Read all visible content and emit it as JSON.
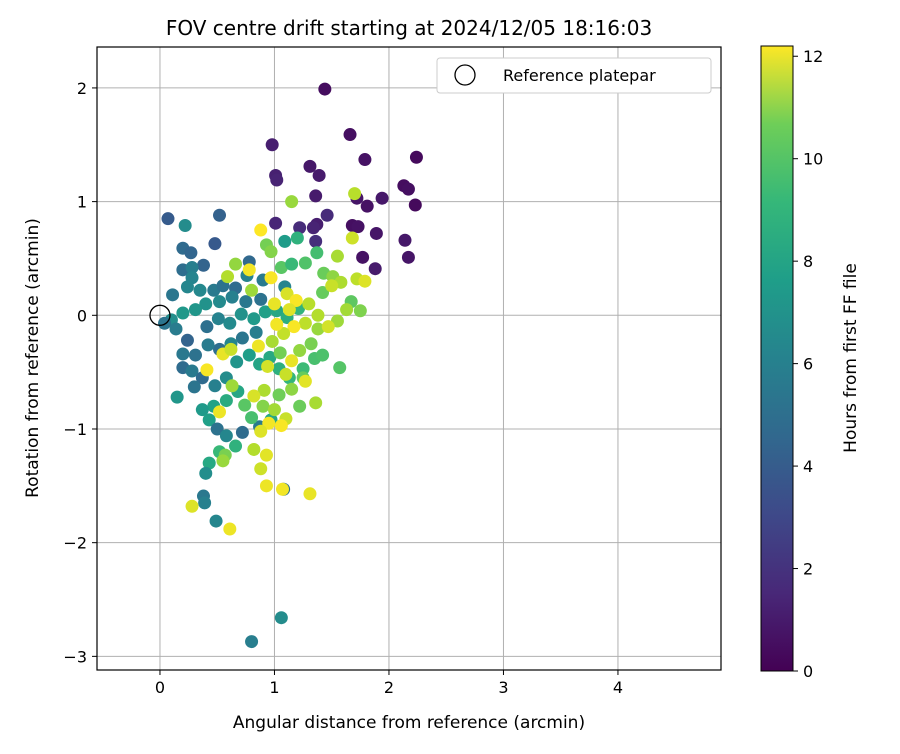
{
  "chart_data": {
    "type": "scatter",
    "title": "FOV centre drift starting at 2024/12/05 18:16:03",
    "xlabel": "Angular distance from reference (arcmin)",
    "ylabel": "Rotation from reference (arcmin)",
    "xlim": [
      -0.55,
      4.9
    ],
    "ylim": [
      -3.12,
      2.36
    ],
    "x_ticks": [
      0,
      1,
      2,
      3,
      4
    ],
    "y_ticks": [
      -3,
      -2,
      -1,
      0,
      1,
      2
    ],
    "grid": true,
    "legend": {
      "placement": "top-right",
      "entries": [
        {
          "label": "Reference platepar",
          "marker": "open-circle",
          "x": 0,
          "y": 0
        }
      ]
    },
    "colorbar": {
      "label": "Hours from first FF file",
      "range": [
        0,
        12.2
      ],
      "ticks": [
        0,
        2,
        4,
        6,
        8,
        10,
        12
      ],
      "colormap": "viridis"
    },
    "reference_point": {
      "x": 0,
      "y": 0
    },
    "points": [
      [
        1.44,
        1.99,
        0.4
      ],
      [
        1.66,
        1.59,
        0.5
      ],
      [
        0.98,
        1.5,
        1.0
      ],
      [
        1.79,
        1.37,
        0.6
      ],
      [
        2.24,
        1.39,
        0.3
      ],
      [
        1.31,
        1.31,
        0.8
      ],
      [
        1.39,
        1.23,
        0.9
      ],
      [
        1.01,
        1.23,
        1.1
      ],
      [
        1.02,
        1.19,
        1.2
      ],
      [
        2.13,
        1.14,
        0.4
      ],
      [
        2.17,
        1.11,
        0.5
      ],
      [
        1.72,
        1.03,
        0.7
      ],
      [
        1.94,
        1.03,
        0.8
      ],
      [
        1.36,
        1.05,
        0.9
      ],
      [
        2.23,
        0.97,
        0.3
      ],
      [
        1.81,
        0.96,
        0.6
      ],
      [
        1.46,
        0.88,
        1.5
      ],
      [
        1.01,
        0.81,
        1.3
      ],
      [
        1.68,
        0.79,
        0.5
      ],
      [
        1.73,
        0.78,
        0.6
      ],
      [
        1.89,
        0.72,
        0.7
      ],
      [
        1.37,
        0.8,
        1.0
      ],
      [
        1.34,
        0.77,
        1.2
      ],
      [
        1.22,
        0.77,
        1.5
      ],
      [
        2.14,
        0.66,
        0.8
      ],
      [
        1.36,
        0.65,
        1.6
      ],
      [
        1.77,
        0.51,
        0.6
      ],
      [
        2.17,
        0.51,
        0.7
      ],
      [
        1.88,
        0.41,
        0.9
      ],
      [
        0.07,
        0.85,
        3.5
      ],
      [
        0.52,
        0.88,
        3.8
      ],
      [
        0.22,
        0.79,
        5.9
      ],
      [
        0.48,
        0.63,
        3.4
      ],
      [
        0.2,
        0.59,
        4.2
      ],
      [
        0.27,
        0.55,
        4.0
      ],
      [
        0.38,
        0.44,
        3.9
      ],
      [
        0.2,
        0.4,
        4.4
      ],
      [
        0.28,
        0.42,
        5.2
      ],
      [
        0.28,
        0.33,
        5.5
      ],
      [
        0.11,
        0.18,
        4.8
      ],
      [
        0.24,
        0.25,
        5.6
      ],
      [
        0.35,
        0.22,
        5.7
      ],
      [
        0.47,
        0.22,
        5.0
      ],
      [
        0.55,
        0.26,
        4.6
      ],
      [
        0.66,
        0.24,
        4.3
      ],
      [
        0.78,
        0.47,
        4.1
      ],
      [
        0.76,
        0.35,
        5.4
      ],
      [
        0.9,
        0.31,
        5.0
      ],
      [
        1.09,
        0.25,
        5.5
      ],
      [
        0.88,
        0.14,
        4.6
      ],
      [
        0.75,
        0.12,
        4.9
      ],
      [
        0.63,
        0.16,
        5.3
      ],
      [
        0.52,
        0.12,
        5.8
      ],
      [
        0.4,
        0.1,
        6.2
      ],
      [
        0.31,
        0.05,
        6.4
      ],
      [
        0.2,
        0.02,
        6.5
      ],
      [
        0.1,
        -0.04,
        6.0
      ],
      [
        0.04,
        -0.07,
        4.7
      ],
      [
        0.14,
        -0.12,
        5.1
      ],
      [
        0.24,
        -0.22,
        3.9
      ],
      [
        0.41,
        -0.1,
        4.5
      ],
      [
        0.51,
        -0.03,
        5.4
      ],
      [
        0.61,
        -0.07,
        5.8
      ],
      [
        0.71,
        0.01,
        6.2
      ],
      [
        0.82,
        -0.03,
        6.6
      ],
      [
        0.92,
        0.03,
        6.9
      ],
      [
        1.02,
        0.04,
        7.2
      ],
      [
        1.11,
        -0.02,
        7.6
      ],
      [
        1.21,
        0.06,
        7.9
      ],
      [
        0.84,
        -0.15,
        5.2
      ],
      [
        0.72,
        -0.2,
        4.8
      ],
      [
        0.62,
        -0.25,
        5.6
      ],
      [
        0.52,
        -0.3,
        4.4
      ],
      [
        0.42,
        -0.26,
        5.1
      ],
      [
        0.31,
        -0.35,
        4.6
      ],
      [
        0.2,
        -0.34,
        4.9
      ],
      [
        0.2,
        -0.46,
        4.3
      ],
      [
        0.28,
        -0.49,
        5.0
      ],
      [
        0.37,
        -0.55,
        4.2
      ],
      [
        0.3,
        -0.63,
        4.7
      ],
      [
        0.48,
        -0.62,
        5.3
      ],
      [
        0.58,
        -0.55,
        5.9
      ],
      [
        0.67,
        -0.41,
        6.3
      ],
      [
        0.78,
        -0.35,
        6.8
      ],
      [
        0.87,
        -0.43,
        7.1
      ],
      [
        0.96,
        -0.37,
        7.4
      ],
      [
        1.04,
        -0.47,
        7.7
      ],
      [
        1.13,
        -0.55,
        8.0
      ],
      [
        1.25,
        -0.47,
        8.3
      ],
      [
        1.35,
        -0.38,
        8.6
      ],
      [
        1.57,
        -0.46,
        8.9
      ],
      [
        0.68,
        -0.67,
        7.2
      ],
      [
        0.58,
        -0.75,
        7.5
      ],
      [
        0.47,
        -0.8,
        7.0
      ],
      [
        0.37,
        -0.83,
        6.6
      ],
      [
        0.43,
        -0.92,
        6.9
      ],
      [
        0.5,
        -1.0,
        4.6
      ],
      [
        0.58,
        -1.06,
        5.6
      ],
      [
        0.72,
        -1.03,
        4.3
      ],
      [
        0.87,
        -0.98,
        5.0
      ],
      [
        0.97,
        -0.92,
        7.3
      ],
      [
        0.8,
        -0.9,
        8.6
      ],
      [
        0.66,
        -1.15,
        7.8
      ],
      [
        0.52,
        -1.2,
        8.2
      ],
      [
        0.43,
        -1.3,
        7.3
      ],
      [
        0.4,
        -1.39,
        6.0
      ],
      [
        0.38,
        -1.59,
        4.9
      ],
      [
        0.39,
        -1.65,
        5.3
      ],
      [
        0.49,
        -1.81,
        5.6
      ],
      [
        0.15,
        -0.72,
        6.4
      ],
      [
        1.08,
        -1.53,
        4.5
      ],
      [
        1.06,
        -2.66,
        5.9
      ],
      [
        0.8,
        -2.87,
        5.2
      ],
      [
        1.09,
        0.65,
        6.7
      ],
      [
        1.2,
        0.68,
        7.8
      ],
      [
        1.37,
        0.55,
        8.5
      ],
      [
        1.06,
        0.42,
        9.0
      ],
      [
        1.15,
        0.45,
        8.2
      ],
      [
        0.93,
        0.62,
        9.6
      ],
      [
        0.97,
        0.56,
        9.9
      ],
      [
        0.66,
        0.45,
        10.2
      ],
      [
        0.59,
        0.34,
        10.8
      ],
      [
        0.8,
        0.22,
        10.4
      ],
      [
        1.15,
        1.0,
        10.3
      ],
      [
        1.55,
        0.52,
        10.6
      ],
      [
        1.7,
        1.07,
        10.9
      ],
      [
        1.68,
        0.68,
        11.3
      ],
      [
        1.27,
        0.46,
        8.8
      ],
      [
        1.43,
        0.37,
        9.4
      ],
      [
        1.51,
        0.34,
        10.1
      ],
      [
        1.58,
        0.29,
        10.7
      ],
      [
        1.42,
        0.2,
        9.3
      ],
      [
        1.67,
        0.12,
        9.1
      ],
      [
        1.55,
        -0.05,
        10.4
      ],
      [
        1.72,
        0.32,
        11.0
      ],
      [
        1.75,
        0.04,
        9.8
      ],
      [
        1.79,
        0.3,
        11.6
      ],
      [
        1.27,
        -0.07,
        11.0
      ],
      [
        1.38,
        -0.12,
        10.3
      ],
      [
        1.47,
        -0.1,
        11.4
      ],
      [
        1.17,
        -0.1,
        12.1
      ],
      [
        1.08,
        -0.16,
        11.1
      ],
      [
        0.98,
        -0.23,
        10.6
      ],
      [
        1.05,
        -0.33,
        9.6
      ],
      [
        1.15,
        -0.4,
        11.8
      ],
      [
        1.22,
        -0.31,
        10.2
      ],
      [
        1.32,
        -0.25,
        9.7
      ],
      [
        1.42,
        -0.35,
        8.7
      ],
      [
        1.25,
        -0.55,
        9.3
      ],
      [
        1.15,
        -0.65,
        10.1
      ],
      [
        1.04,
        -0.7,
        9.5
      ],
      [
        0.91,
        -0.66,
        10.7
      ],
      [
        0.82,
        -0.71,
        11.5
      ],
      [
        0.74,
        -0.79,
        9.0
      ],
      [
        0.9,
        -0.8,
        9.9
      ],
      [
        1.0,
        -0.83,
        10.5
      ],
      [
        1.1,
        -0.91,
        11.2
      ],
      [
        0.95,
        -0.95,
        12.0
      ],
      [
        0.88,
        -1.02,
        11.6
      ],
      [
        1.06,
        -0.97,
        12.1
      ],
      [
        1.22,
        -0.8,
        9.4
      ],
      [
        1.36,
        -0.77,
        10.6
      ],
      [
        0.82,
        -1.18,
        10.8
      ],
      [
        0.88,
        -1.35,
        11.3
      ],
      [
        0.93,
        -1.5,
        11.9
      ],
      [
        0.93,
        -1.23,
        11.7
      ],
      [
        1.07,
        -1.53,
        12.0
      ],
      [
        1.31,
        -1.57,
        11.8
      ],
      [
        0.57,
        -1.23,
        9.7
      ],
      [
        0.55,
        -1.28,
        10.3
      ],
      [
        0.28,
        -1.68,
        11.6
      ],
      [
        0.61,
        -1.88,
        11.9
      ],
      [
        0.41,
        -0.48,
        12.1
      ],
      [
        0.55,
        -0.34,
        11.8
      ],
      [
        0.62,
        -0.3,
        11.2
      ],
      [
        0.52,
        -0.85,
        11.9
      ],
      [
        0.63,
        -0.62,
        10.4
      ],
      [
        0.78,
        0.4,
        12.0
      ],
      [
        0.88,
        0.75,
        12.2
      ],
      [
        0.97,
        0.33,
        12.1
      ],
      [
        1.11,
        0.19,
        11.5
      ],
      [
        1.19,
        0.13,
        12.1
      ],
      [
        1.3,
        0.1,
        10.9
      ],
      [
        1.0,
        0.1,
        11.8
      ],
      [
        1.02,
        -0.08,
        12.0
      ],
      [
        1.13,
        0.05,
        11.6
      ],
      [
        0.86,
        -0.27,
        11.9
      ],
      [
        0.94,
        -0.45,
        11.4
      ],
      [
        1.1,
        -0.52,
        11.2
      ],
      [
        1.27,
        -0.58,
        11.7
      ],
      [
        1.5,
        0.26,
        11.2
      ],
      [
        1.38,
        0.0,
        10.8
      ],
      [
        1.63,
        0.05,
        10.5
      ]
    ]
  }
}
